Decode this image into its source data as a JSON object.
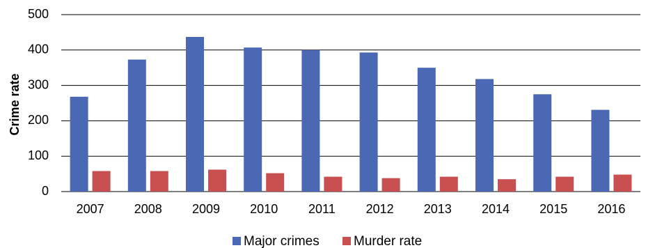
{
  "chart_data": {
    "type": "bar",
    "title": "",
    "xlabel": "",
    "ylabel": "Crime rate",
    "ylim": [
      0,
      500
    ],
    "yticks": [
      0,
      100,
      200,
      300,
      400,
      500
    ],
    "grid": true,
    "legend_position": "bottom",
    "categories": [
      "2007",
      "2008",
      "2009",
      "2010",
      "2011",
      "2012",
      "2013",
      "2014",
      "2015",
      "2016"
    ],
    "series": [
      {
        "name": "Major crimes",
        "color": "#4a68b4",
        "values": [
          268,
          373,
          437,
          407,
          400,
          393,
          350,
          318,
          275,
          231
        ]
      },
      {
        "name": "Murder rate",
        "color": "#c85050",
        "values": [
          58,
          58,
          62,
          52,
          42,
          38,
          42,
          35,
          42,
          48
        ]
      }
    ]
  }
}
